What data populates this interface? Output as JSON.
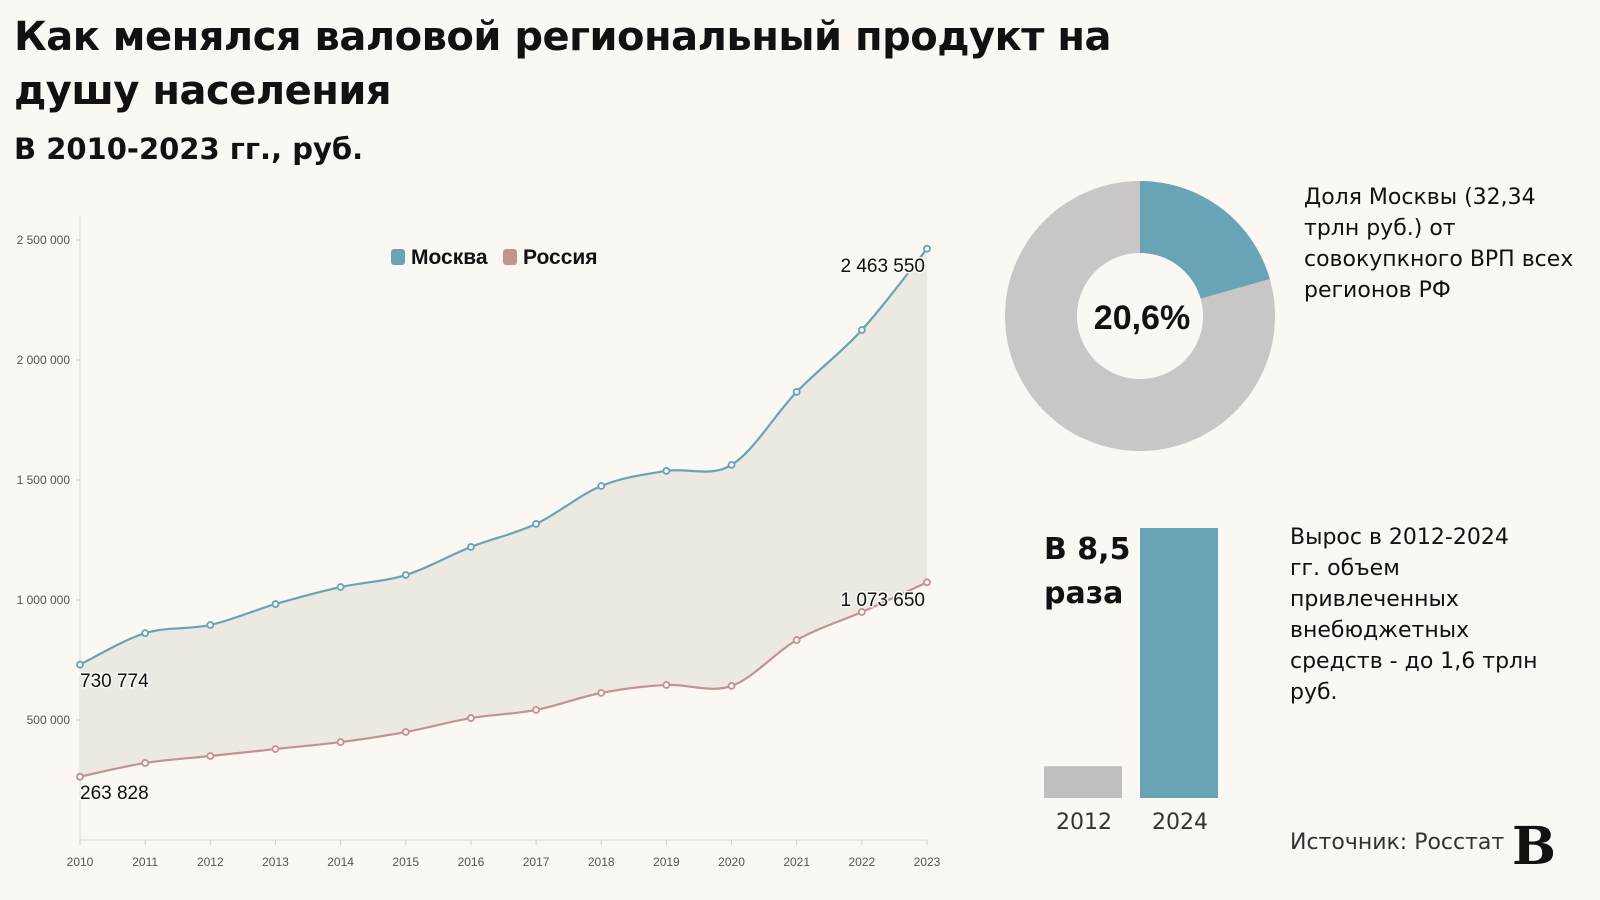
{
  "title": "Как менялся валовой региональный продукт на душу населения",
  "subtitle": "В 2010-2023 гг., руб.",
  "colors": {
    "moscow": "#68a4b5",
    "russia": "#c49292",
    "area": "#ece9e3",
    "grey": "#c8c7c5",
    "background": "#fbf7f3"
  },
  "chart_data": [
    {
      "type": "line",
      "x": [
        2010,
        2011,
        2012,
        2013,
        2014,
        2015,
        2016,
        2017,
        2018,
        2019,
        2020,
        2021,
        2022,
        2023
      ],
      "ylim": [
        0,
        2600000
      ],
      "yticks": [
        500000,
        1000000,
        1500000,
        2000000,
        2500000
      ],
      "ytick_labels": [
        "500 000",
        "1 000 000",
        "1 500 000",
        "2 000 000",
        "2 500 000"
      ],
      "grid": false,
      "legend_position": "top-center",
      "series": [
        {
          "name": "Москва",
          "values": [
            730774,
            862000,
            896000,
            983000,
            1054000,
            1104000,
            1221000,
            1317000,
            1475000,
            1538000,
            1563000,
            1867000,
            2125000,
            2463550
          ]
        },
        {
          "name": "Россия",
          "values": [
            263828,
            321000,
            350000,
            379000,
            408000,
            450000,
            508000,
            542000,
            613000,
            646000,
            642000,
            833000,
            950000,
            1073650
          ]
        }
      ],
      "annotations": [
        "730 774",
        "263 828",
        "2 463 550",
        "1 073 650"
      ]
    },
    {
      "type": "pie",
      "values": [
        20.6,
        79.4
      ],
      "center_label": "20,6%",
      "annotation": "Доля Москвы (32,34 трлн руб.)  от совокупкного ВРП всех регионов РФ"
    },
    {
      "type": "bar",
      "categories": [
        "2012",
        "2024"
      ],
      "values": [
        1,
        8.5
      ],
      "label": "В 8,5 раза",
      "annotation": "Вырос в 2012-2024 гг. объем привлеченных внебюджетных средств - до 1,6 трлн руб."
    }
  ],
  "source": "Источник: Росстат",
  "logo": "В"
}
